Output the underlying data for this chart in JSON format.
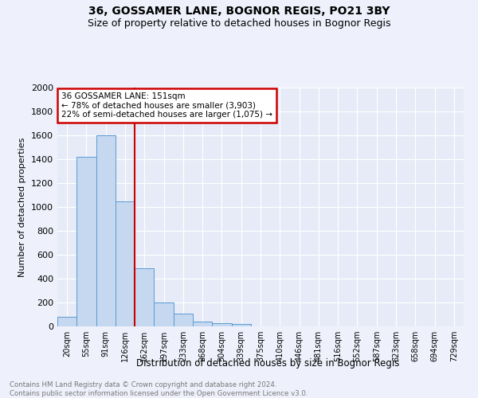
{
  "title": "36, GOSSAMER LANE, BOGNOR REGIS, PO21 3BY",
  "subtitle": "Size of property relative to detached houses in Bognor Regis",
  "xlabel": "Distribution of detached houses by size in Bognor Regis",
  "ylabel": "Number of detached properties",
  "categories": [
    "20sqm",
    "55sqm",
    "91sqm",
    "126sqm",
    "162sqm",
    "197sqm",
    "233sqm",
    "268sqm",
    "304sqm",
    "339sqm",
    "375sqm",
    "410sqm",
    "446sqm",
    "481sqm",
    "516sqm",
    "552sqm",
    "587sqm",
    "623sqm",
    "658sqm",
    "694sqm",
    "729sqm"
  ],
  "values": [
    80,
    1420,
    1600,
    1050,
    490,
    200,
    110,
    40,
    25,
    20,
    0,
    0,
    0,
    0,
    0,
    0,
    0,
    0,
    0,
    0,
    0
  ],
  "bar_color": "#c5d8f0",
  "bar_edge_color": "#5b9bd5",
  "red_line_x": 3.5,
  "ylim": [
    0,
    2000
  ],
  "yticks": [
    0,
    200,
    400,
    600,
    800,
    1000,
    1200,
    1400,
    1600,
    1800,
    2000
  ],
  "annotation_title": "36 GOSSAMER LANE: 151sqm",
  "annotation_line1": "← 78% of detached houses are smaller (3,903)",
  "annotation_line2": "22% of semi-detached houses are larger (1,075) →",
  "footnote1": "Contains HM Land Registry data © Crown copyright and database right 2024.",
  "footnote2": "Contains public sector information licensed under the Open Government Licence v3.0.",
  "background_color": "#eef1fb",
  "plot_background": "#e6ebf7",
  "grid_color": "#ffffff",
  "title_fontsize": 10,
  "subtitle_fontsize": 9,
  "annotation_box_color": "#ffffff",
  "annotation_box_edge": "#cc0000",
  "red_line_color": "#cc0000"
}
